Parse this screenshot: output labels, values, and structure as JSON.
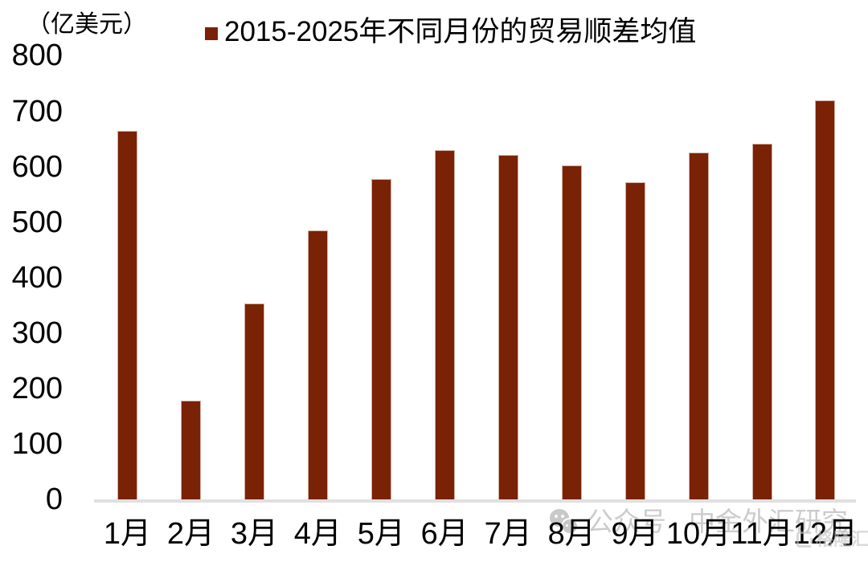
{
  "chart": {
    "units_label": "（亿美元）",
    "legend_label": "2015-2025年不同月份的贸易顺差均值"
  },
  "chart_data": {
    "type": "bar",
    "title": "2015-2025年不同月份的贸易顺差均值",
    "unit_label": "（亿美元）",
    "categories": [
      "1月",
      "2月",
      "3月",
      "4月",
      "5月",
      "6月",
      "7月",
      "8月",
      "9月",
      "10月",
      "11月",
      "12月"
    ],
    "values": [
      664,
      178,
      353,
      485,
      578,
      630,
      621,
      602,
      572,
      625,
      641,
      719
    ],
    "xlabel": "",
    "ylabel": "亿美元",
    "ylim": [
      0,
      800
    ],
    "y_ticks": [
      0,
      100,
      200,
      300,
      400,
      500,
      600,
      700,
      800
    ],
    "grid": false,
    "legend_position": "top",
    "bar_color": "#7a2205"
  },
  "watermarks": {
    "wechat_prefix": "公众号",
    "wechat_account": "中金外汇研究",
    "gelonghui_label": "格隆汇"
  },
  "colors": {
    "bar": "#7a2205",
    "bar_edge": "#d3b0a0",
    "axis_line": "#e0e0e0",
    "text": "#000000",
    "watermark_gray": "#b9b9b9"
  }
}
